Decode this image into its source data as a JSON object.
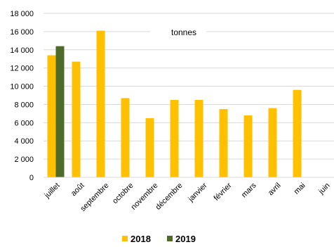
{
  "chart_data": {
    "type": "bar",
    "unit_label": "tonnes",
    "categories": [
      "juillet",
      "août",
      "septembre",
      "octobre",
      "novembre",
      "décembre",
      "janvier",
      "février",
      "mars",
      "avril",
      "mai",
      "juin"
    ],
    "series": [
      {
        "name": "2018",
        "color": "#FFC000",
        "values": [
          13400,
          12700,
          16100,
          8700,
          6500,
          8500,
          8500,
          7500,
          6800,
          7600,
          9600,
          null
        ]
      },
      {
        "name": "2019",
        "color": "#4E6B2A",
        "values": [
          14400,
          null,
          null,
          null,
          null,
          null,
          null,
          null,
          null,
          null,
          null,
          null
        ]
      }
    ],
    "yticks": [
      "0",
      "2 000",
      "4 000",
      "6 000",
      "8 000",
      "10 000",
      "12 000",
      "14 000",
      "16 000",
      "18 000"
    ],
    "ylim": [
      0,
      18000
    ],
    "grid": true,
    "legend_position": "bottom"
  }
}
